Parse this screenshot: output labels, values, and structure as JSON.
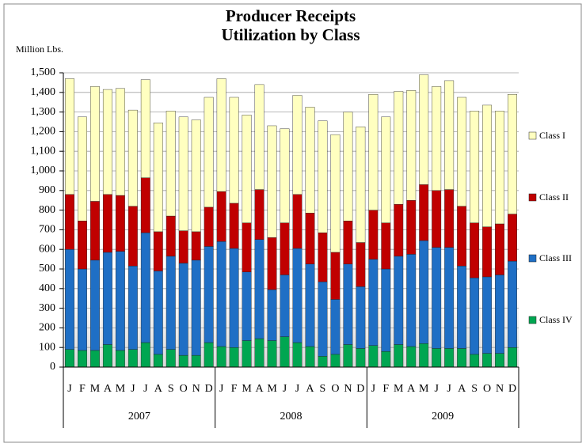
{
  "chart_data": {
    "type": "stacked_bar",
    "title": [
      "Producer Receipts",
      "Utilization by Class"
    ],
    "y_label": "Million Lbs.",
    "categories": [
      "J",
      "F",
      "M",
      "A",
      "M",
      "J",
      "J",
      "A",
      "S",
      "O",
      "N",
      "D",
      "J",
      "F",
      "M",
      "A",
      "M",
      "J",
      "J",
      "A",
      "S",
      "O",
      "N",
      "D",
      "J",
      "F",
      "M",
      "A",
      "M",
      "J",
      "J",
      "A",
      "S",
      "O",
      "N",
      "D"
    ],
    "category_groups": [
      "2007",
      "2008",
      "2009"
    ],
    "series": [
      {
        "name": "Class IV",
        "color": "#00a651",
        "values": [
          90,
          85,
          85,
          115,
          85,
          90,
          125,
          65,
          90,
          60,
          60,
          125,
          105,
          100,
          135,
          145,
          135,
          155,
          125,
          105,
          55,
          65,
          115,
          95,
          110,
          80,
          115,
          105,
          120,
          95,
          95,
          95,
          65,
          70,
          70,
          100
        ]
      },
      {
        "name": "Class III",
        "color": "#1f6fc5",
        "values": [
          510,
          415,
          460,
          470,
          505,
          425,
          560,
          425,
          475,
          470,
          485,
          490,
          535,
          505,
          350,
          505,
          260,
          315,
          480,
          420,
          380,
          280,
          410,
          315,
          440,
          420,
          450,
          470,
          525,
          515,
          515,
          420,
          390,
          390,
          400,
          440
        ]
      },
      {
        "name": "Class II",
        "color": "#c00000",
        "values": [
          280,
          245,
          300,
          295,
          285,
          305,
          280,
          200,
          205,
          165,
          145,
          200,
          255,
          230,
          250,
          255,
          265,
          265,
          275,
          260,
          250,
          240,
          220,
          225,
          250,
          235,
          265,
          275,
          285,
          290,
          295,
          305,
          280,
          255,
          260,
          240
        ]
      },
      {
        "name": "Class I",
        "color": "#ffffc0",
        "values": [
          590,
          530,
          585,
          535,
          545,
          490,
          500,
          555,
          535,
          580,
          570,
          560,
          575,
          540,
          550,
          535,
          570,
          480,
          505,
          540,
          570,
          600,
          555,
          590,
          590,
          540,
          575,
          560,
          560,
          530,
          555,
          555,
          570,
          620,
          575,
          610
        ]
      }
    ],
    "ylim": [
      0,
      1500
    ],
    "yticks": [
      0,
      100,
      200,
      300,
      400,
      500,
      600,
      700,
      800,
      900,
      {
        "value": 1000,
        "label": "1,000"
      },
      {
        "value": 1100,
        "label": "1,100"
      },
      {
        "value": 1200,
        "label": "1,200"
      },
      {
        "value": 1300,
        "label": "1,300"
      },
      {
        "value": 1400,
        "label": "1,400"
      },
      {
        "value": 1500,
        "label": "1,500"
      }
    ],
    "grid": true,
    "legend": "right"
  }
}
